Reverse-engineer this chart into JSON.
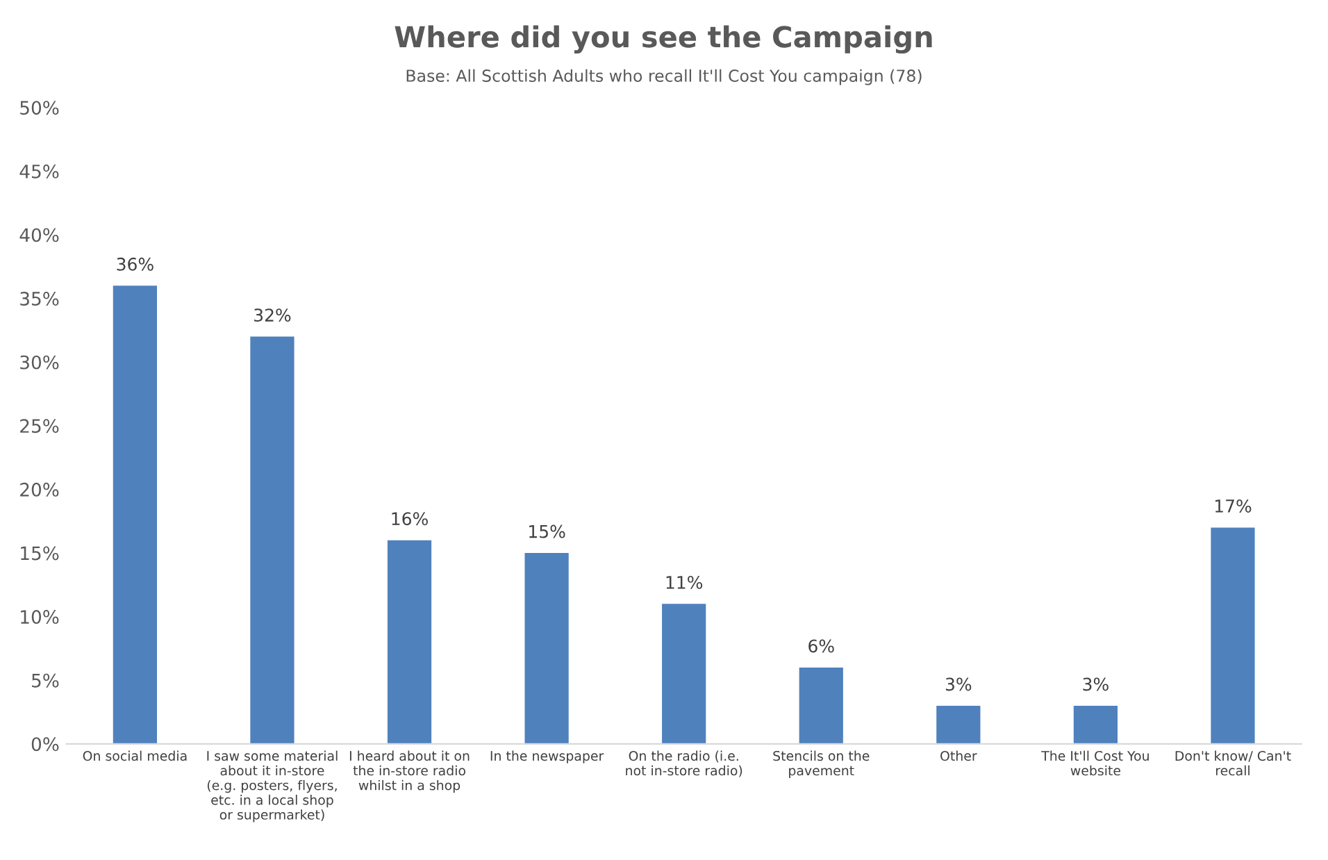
{
  "chart_data": {
    "type": "bar",
    "title": "Where did you see the Campaign",
    "subtitle": "Base: All Scottish Adults who recall It'll Cost You campaign (78)",
    "categories": [
      "On social media",
      "I saw some material\nabout it in-store\n(e.g. posters, flyers,\netc. in a local shop\nor supermarket)",
      "I heard about it on\nthe in-store radio\nwhilst in a shop",
      "In the newspaper",
      "On the radio (i.e.\nnot in-store radio)",
      "Stencils on the\npavement",
      "Other",
      "The It'll Cost You\nwebsite",
      "Don't know/ Can't\nrecall"
    ],
    "values": [
      36,
      32,
      16,
      15,
      11,
      6,
      3,
      3,
      17
    ],
    "value_labels": [
      "36%",
      "32%",
      "16%",
      "15%",
      "11%",
      "6%",
      "3%",
      "3%",
      "17%"
    ],
    "color": "#4f81bd",
    "ylim": [
      0,
      50
    ],
    "yticks": [
      {
        "value": 0,
        "label": "0%"
      },
      {
        "value": 5,
        "label": "5%"
      },
      {
        "value": 10,
        "label": "10%"
      },
      {
        "value": 15,
        "label": "15%"
      },
      {
        "value": 20,
        "label": "20%"
      },
      {
        "value": 25,
        "label": "25%"
      },
      {
        "value": 30,
        "label": "30%"
      },
      {
        "value": 35,
        "label": "35%"
      },
      {
        "value": 40,
        "label": "40%"
      },
      {
        "value": 45,
        "label": "45%"
      },
      {
        "value": 50,
        "label": "50%"
      }
    ],
    "grid": false,
    "legend": false
  }
}
